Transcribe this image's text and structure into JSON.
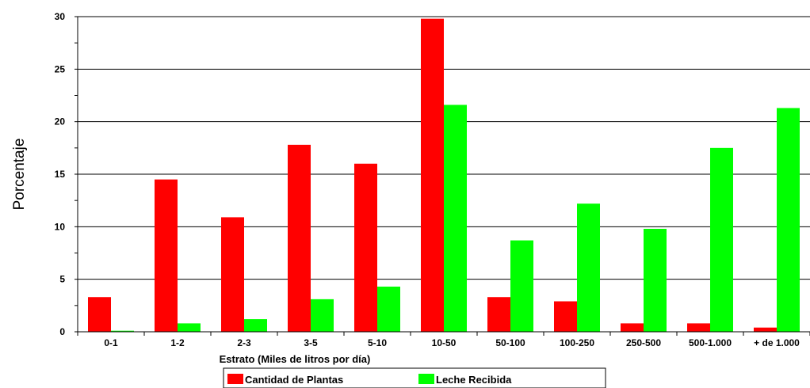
{
  "chart_data": {
    "type": "bar",
    "xlabel": "Estrato (Miles de litros por día)",
    "ylabel": "Porcentaje",
    "ylim": [
      0,
      30
    ],
    "yticks": [
      0,
      5,
      10,
      15,
      20,
      25,
      30
    ],
    "grid": true,
    "legend_position": "bottom",
    "categories": [
      "0-1",
      "1-2",
      "2-3",
      "3-5",
      "5-10",
      "10-50",
      "50-100",
      "100-250",
      "250-500",
      "500-1.000",
      "+ de 1.000"
    ],
    "series": [
      {
        "name": "Cantidad de Plantas",
        "color": "#ff0000",
        "values": [
          3.3,
          14.5,
          10.9,
          17.8,
          16.0,
          29.8,
          3.3,
          2.9,
          0.8,
          0.8,
          0.4
        ]
      },
      {
        "name": "Leche Recibida",
        "color": "#00ff00",
        "values": [
          0.1,
          0.8,
          1.2,
          3.1,
          4.3,
          21.6,
          8.7,
          12.2,
          9.8,
          17.5,
          21.3
        ]
      }
    ]
  }
}
